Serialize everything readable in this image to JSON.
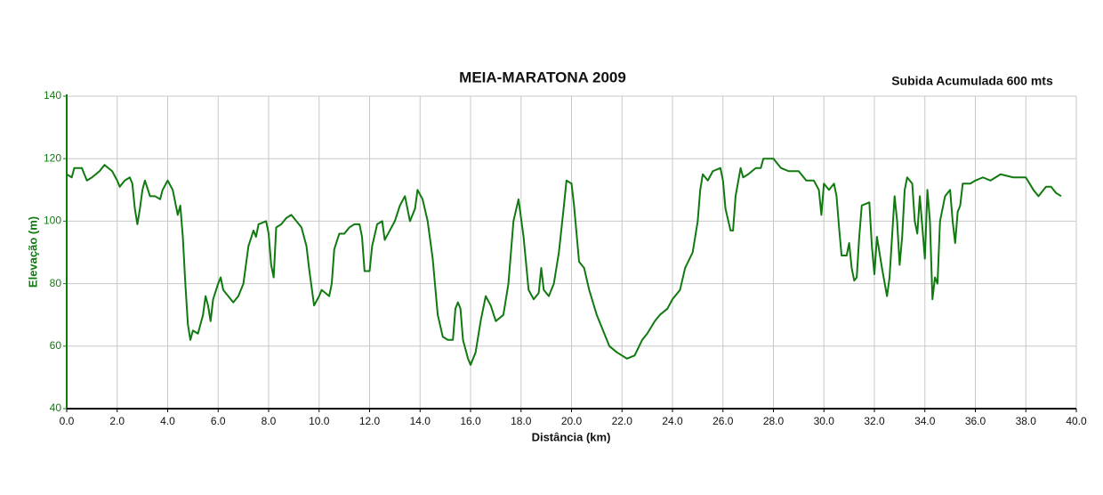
{
  "chart_data": {
    "type": "line",
    "title": "MEIA-MARATONA 2009",
    "annotation": "Subida Acumulada 600 mts",
    "xlabel": "Distância (km)",
    "ylabel": "Elevação (m)",
    "color": "#107a10",
    "grid": true,
    "xlim": [
      0,
      40
    ],
    "ylim": [
      40,
      140
    ],
    "xticks": [
      {
        "value": 0,
        "label": "0.0"
      },
      {
        "value": 2,
        "label": "2.0"
      },
      {
        "value": 4,
        "label": "4.0"
      },
      {
        "value": 6,
        "label": "6.0"
      },
      {
        "value": 8,
        "label": "8.0"
      },
      {
        "value": 10,
        "label": "10.0"
      },
      {
        "value": 12,
        "label": "12.0"
      },
      {
        "value": 14,
        "label": "14.0"
      },
      {
        "value": 16,
        "label": "16.0"
      },
      {
        "value": 18,
        "label": "18.0"
      },
      {
        "value": 20,
        "label": "20.0"
      },
      {
        "value": 22,
        "label": "22.0"
      },
      {
        "value": 24,
        "label": "24.0"
      },
      {
        "value": 26,
        "label": "26.0"
      },
      {
        "value": 28,
        "label": "28.0"
      },
      {
        "value": 30,
        "label": "30.0"
      },
      {
        "value": 32,
        "label": "32.0"
      },
      {
        "value": 34,
        "label": "34.0"
      },
      {
        "value": 36,
        "label": "36.0"
      },
      {
        "value": 38,
        "label": "38.0"
      },
      {
        "value": 40,
        "label": "40.0"
      }
    ],
    "yticks": [
      40,
      60,
      80,
      100,
      120,
      140
    ],
    "x": [
      0.0,
      0.2,
      0.3,
      0.6,
      0.8,
      1.0,
      1.3,
      1.5,
      1.8,
      2.0,
      2.1,
      2.3,
      2.5,
      2.6,
      2.7,
      2.8,
      2.9,
      3.0,
      3.1,
      3.3,
      3.5,
      3.7,
      3.8,
      4.0,
      4.2,
      4.4,
      4.5,
      4.6,
      4.7,
      4.8,
      4.9,
      5.0,
      5.2,
      5.4,
      5.5,
      5.6,
      5.7,
      5.8,
      6.0,
      6.1,
      6.2,
      6.4,
      6.6,
      6.8,
      7.0,
      7.2,
      7.4,
      7.5,
      7.6,
      7.9,
      8.0,
      8.1,
      8.2,
      8.3,
      8.5,
      8.7,
      8.9,
      9.1,
      9.3,
      9.5,
      9.6,
      9.8,
      10.0,
      10.1,
      10.4,
      10.5,
      10.6,
      10.8,
      11.0,
      11.2,
      11.4,
      11.6,
      11.7,
      11.8,
      12.0,
      12.1,
      12.3,
      12.5,
      12.6,
      12.8,
      13.0,
      13.2,
      13.4,
      13.6,
      13.8,
      13.9,
      14.1,
      14.3,
      14.5,
      14.7,
      14.9,
      15.1,
      15.3,
      15.4,
      15.5,
      15.6,
      15.7,
      15.9,
      16.0,
      16.2,
      16.4,
      16.6,
      16.8,
      17.0,
      17.3,
      17.5,
      17.7,
      17.9,
      18.1,
      18.3,
      18.5,
      18.7,
      18.8,
      18.9,
      19.1,
      19.3,
      19.5,
      19.7,
      19.8,
      20.0,
      20.1,
      20.3,
      20.5,
      20.7,
      21.0,
      21.3,
      21.5,
      21.8,
      22.0,
      22.2,
      22.5,
      22.8,
      23.0,
      23.3,
      23.5,
      23.8,
      24.0,
      24.3,
      24.5,
      24.8,
      25.0,
      25.1,
      25.2,
      25.4,
      25.6,
      25.9,
      26.0,
      26.1,
      26.3,
      26.4,
      26.5,
      26.7,
      26.8,
      27.0,
      27.3,
      27.5,
      27.6,
      28.0,
      28.3,
      28.6,
      29.0,
      29.3,
      29.6,
      29.8,
      29.9,
      30.0,
      30.2,
      30.4,
      30.5,
      30.6,
      30.7,
      30.9,
      31.0,
      31.1,
      31.2,
      31.3,
      31.4,
      31.5,
      31.8,
      31.9,
      32.0,
      32.1,
      32.2,
      32.3,
      32.5,
      32.6,
      32.7,
      32.8,
      32.9,
      33.0,
      33.1,
      33.2,
      33.3,
      33.5,
      33.6,
      33.7,
      33.8,
      34.0,
      34.1,
      34.2,
      34.3,
      34.4,
      34.5,
      34.6,
      34.8,
      35.0,
      35.1,
      35.2,
      35.3,
      35.4,
      35.5,
      35.8,
      36.0,
      36.3,
      36.6,
      37.0,
      37.5,
      38.0,
      38.3,
      38.5,
      38.8,
      39.0,
      39.2,
      39.4
    ],
    "values": [
      115,
      114,
      117,
      117,
      113,
      114,
      116,
      118,
      116,
      113,
      111,
      113,
      114,
      112,
      104,
      99,
      104,
      110,
      113,
      108,
      108,
      107,
      110,
      113,
      110,
      102,
      105,
      95,
      80,
      67,
      62,
      65,
      64,
      70,
      76,
      73,
      68,
      75,
      80,
      82,
      78,
      76,
      74,
      76,
      80,
      92,
      97,
      95,
      99,
      100,
      96,
      86,
      82,
      98,
      99,
      101,
      102,
      100,
      98,
      92,
      85,
      73,
      76,
      78,
      76,
      80,
      91,
      96,
      96,
      98,
      99,
      99,
      95,
      84,
      84,
      92,
      99,
      100,
      94,
      97,
      100,
      105,
      108,
      100,
      104,
      110,
      107,
      100,
      88,
      70,
      63,
      62,
      62,
      72,
      74,
      72,
      62,
      56,
      54,
      58,
      68,
      76,
      73,
      68,
      70,
      80,
      100,
      107,
      95,
      78,
      75,
      77,
      85,
      78,
      76,
      80,
      90,
      105,
      113,
      112,
      105,
      87,
      85,
      78,
      70,
      64,
      60,
      58,
      57,
      56,
      57,
      62,
      64,
      68,
      70,
      72,
      75,
      78,
      85,
      90,
      100,
      110,
      115,
      113,
      116,
      117,
      113,
      104,
      97,
      97,
      108,
      117,
      114,
      115,
      117,
      117,
      120,
      120,
      117,
      116,
      116,
      113,
      113,
      110,
      102,
      112,
      110,
      112,
      108,
      98,
      89,
      89,
      93,
      85,
      81,
      82,
      95,
      105,
      106,
      92,
      83,
      95,
      90,
      85,
      76,
      82,
      95,
      108,
      100,
      86,
      95,
      110,
      114,
      112,
      100,
      96,
      108,
      88,
      110,
      100,
      75,
      82,
      80,
      100,
      108,
      110,
      100,
      93,
      103,
      105,
      112,
      112,
      113,
      114,
      113,
      115,
      114,
      114,
      110,
      108,
      111,
      111,
      109,
      108
    ]
  }
}
